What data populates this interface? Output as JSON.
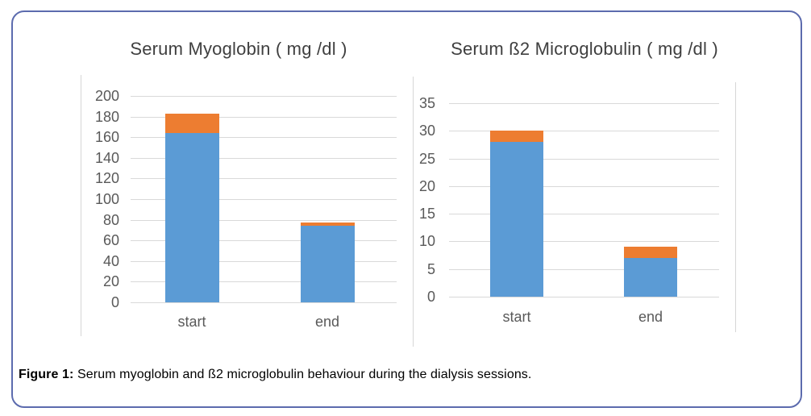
{
  "figure": {
    "caption_label": "Figure 1:",
    "caption_text": " Serum myoglobin and ß2 microglobulin behaviour during the dialysis sessions."
  },
  "colors": {
    "bar_blue": "#5B9BD5",
    "bar_orange": "#ED7D31",
    "box_border": "#5C6BAE",
    "gridline": "#D9D9D9",
    "axis_line": "#D6D6D6",
    "tick_text": "#595959",
    "title_text": "#3F3F3F"
  },
  "chart_data": [
    {
      "type": "bar",
      "stacked": true,
      "title": "Serum Myoglobin ( mg /dl )",
      "categories": [
        "start",
        "end"
      ],
      "series": [
        {
          "name": "lower-blue-segment",
          "color": "#5B9BD5",
          "values": [
            164,
            74
          ]
        },
        {
          "name": "upper-orange-segment",
          "color": "#ED7D31",
          "values": [
            19,
            3
          ]
        }
      ],
      "stack_totals": [
        183,
        77
      ],
      "ylim": [
        0,
        200
      ],
      "yticks": [
        0,
        20,
        40,
        60,
        80,
        100,
        120,
        140,
        160,
        180,
        200
      ],
      "xlabel": "",
      "ylabel": "",
      "grid": true,
      "legend": "none"
    },
    {
      "type": "bar",
      "stacked": true,
      "title": "Serum ß2 Microglobulin ( mg /dl )",
      "categories": [
        "start",
        "end"
      ],
      "series": [
        {
          "name": "lower-blue-segment",
          "color": "#5B9BD5",
          "values": [
            28,
            7
          ]
        },
        {
          "name": "upper-orange-segment",
          "color": "#ED7D31",
          "values": [
            2,
            2
          ]
        }
      ],
      "stack_totals": [
        30,
        9
      ],
      "ylim": [
        0,
        35
      ],
      "yticks": [
        0,
        5,
        10,
        15,
        20,
        25,
        30,
        35
      ],
      "xlabel": "",
      "ylabel": "",
      "grid": true,
      "legend": "none"
    }
  ]
}
